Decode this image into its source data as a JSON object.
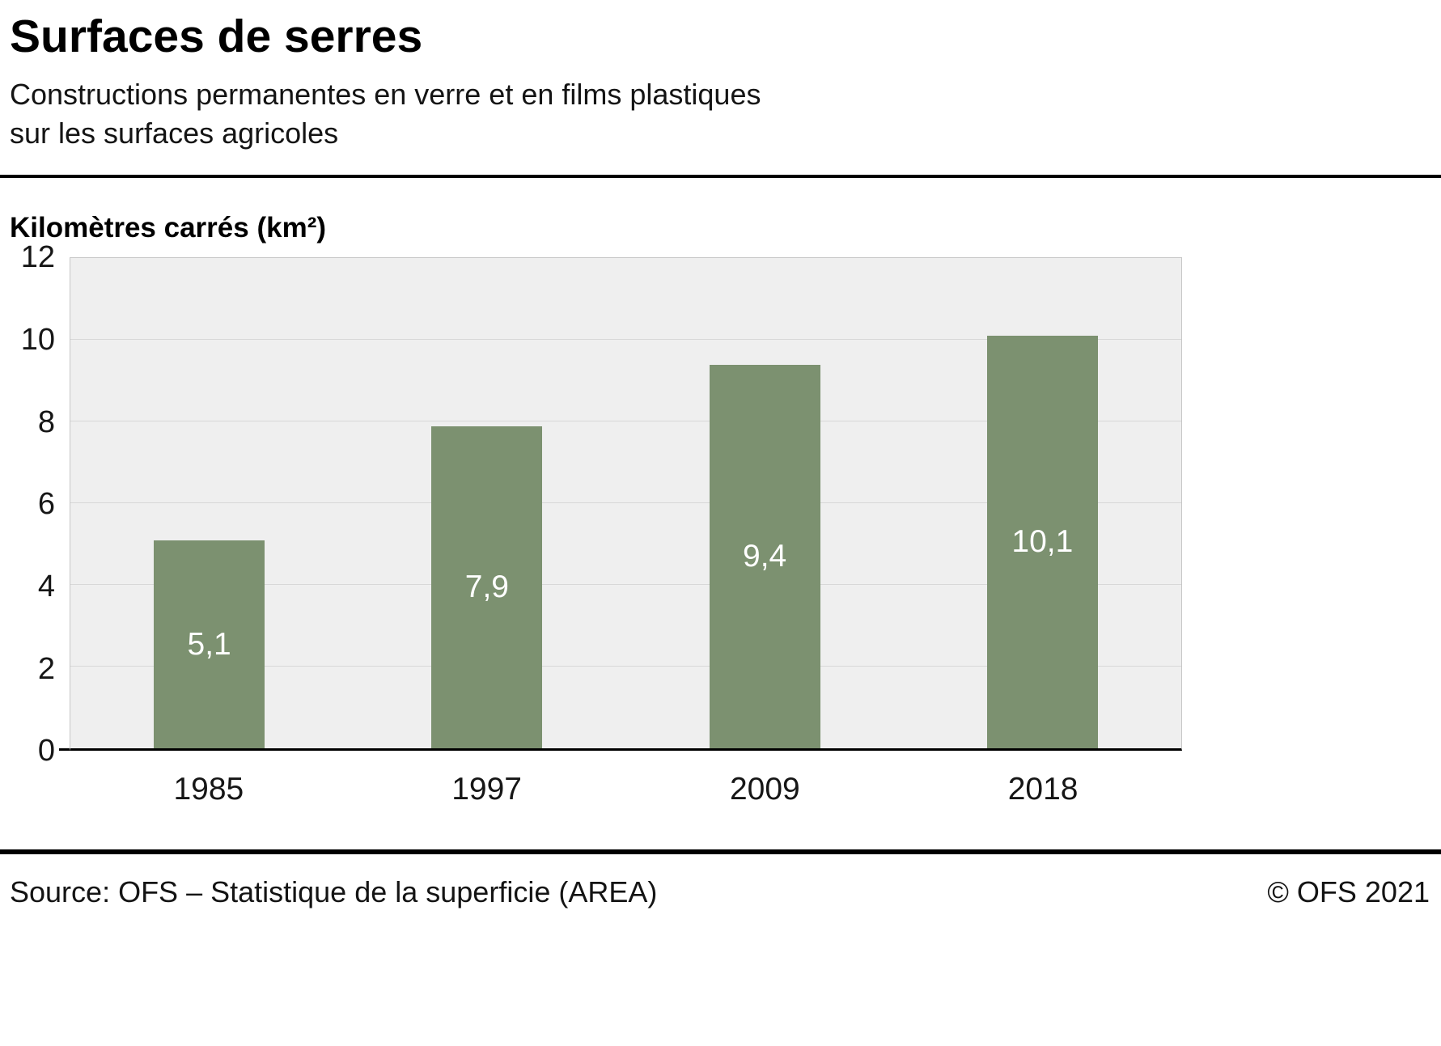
{
  "header": {
    "title": "Surfaces de serres",
    "subtitle_line1": "Constructions permanentes en verre et en films plastiques",
    "subtitle_line2": "sur les surfaces agricoles"
  },
  "chart_data": {
    "type": "bar",
    "title": "Surfaces de serres",
    "subtitle": "Constructions permanentes en verre et en films plastiques sur les surfaces agricoles",
    "unit_label": "Kilomètres carrés (km²)",
    "categories": [
      "1985",
      "1997",
      "2009",
      "2018"
    ],
    "values": [
      5.1,
      7.9,
      9.4,
      10.1
    ],
    "value_labels": [
      "5,1",
      "7,9",
      "9,4",
      "10,1"
    ],
    "ylim": [
      0,
      12
    ],
    "yticks": [
      0,
      2,
      4,
      6,
      8,
      10,
      12
    ],
    "grid": true,
    "legend": "none",
    "bar_color": "#7c9170",
    "plot_bg": "#efefef",
    "gridline_color": "#d8d8d8"
  },
  "footer": {
    "source": "Source: OFS – Statistique de la superficie (AREA)",
    "copyright": "© OFS 2021"
  }
}
